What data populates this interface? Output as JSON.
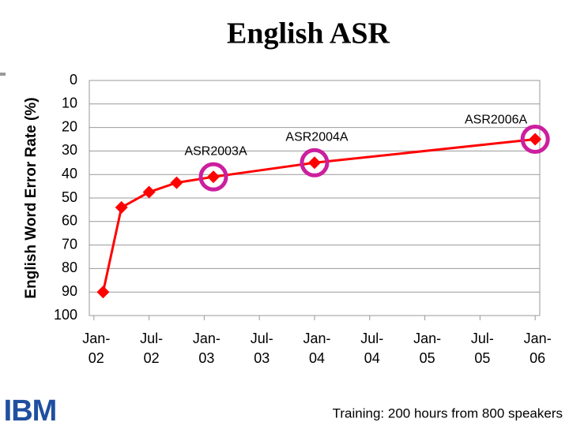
{
  "chart_data": {
    "type": "line",
    "title": "English ASR",
    "y_label": "English Word Error Rate (%)",
    "x": [
      1,
      3,
      6,
      9,
      13,
      24,
      48
    ],
    "values": [
      90,
      54,
      47.5,
      43.5,
      41,
      35,
      25
    ],
    "color": "#ff0000",
    "highlight_color": "#cc1f9e",
    "xlim": [
      -0.5,
      48.5
    ],
    "xticks": [
      {
        "value": 0,
        "label": "Jan-02"
      },
      {
        "value": 6,
        "label": "Jul-02"
      },
      {
        "value": 12,
        "label": "Jan-03"
      },
      {
        "value": 18,
        "label": "Jul-03"
      },
      {
        "value": 24,
        "label": "Jan-04"
      },
      {
        "value": 30,
        "label": "Jul-04"
      },
      {
        "value": 36,
        "label": "Jan-05"
      },
      {
        "value": 42,
        "label": "Jul-05"
      },
      {
        "value": 48,
        "label": "Jan-06"
      }
    ],
    "ylim": [
      0,
      100
    ],
    "yticks": [
      0,
      10,
      20,
      30,
      40,
      50,
      60,
      70,
      80,
      90,
      100
    ],
    "y_inverted": true,
    "grid": true,
    "annotations": [
      {
        "text": "ASR2003A",
        "x": 13
      },
      {
        "text": "ASR2004A",
        "x": 24
      },
      {
        "text": "ASR2006A",
        "x": 48
      }
    ]
  },
  "footnote": "Training: 200 hours from 800 speakers",
  "logo": "IBM"
}
